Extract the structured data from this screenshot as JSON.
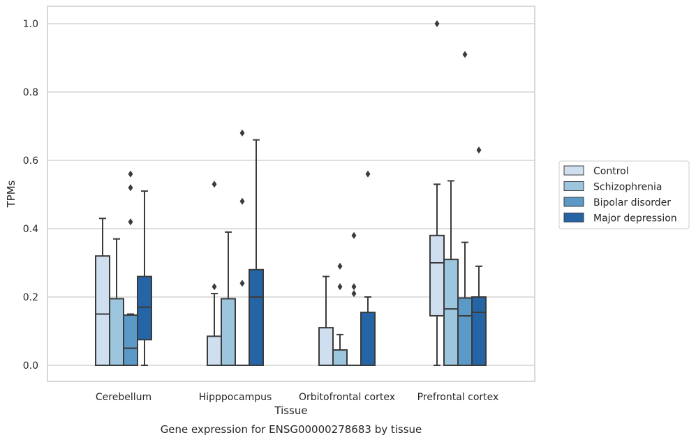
{
  "chart_data": {
    "type": "box",
    "title": "",
    "caption": "Gene expression for ENSG00000278683 by tissue",
    "xlabel": "Tissue",
    "ylabel": "TPMs",
    "ylim": [
      -0.05,
      1.05
    ],
    "yticks": [
      "0.0",
      "0.2",
      "0.4",
      "0.6",
      "0.8",
      "1.0"
    ],
    "grid": true,
    "legend_position": "right",
    "categories": [
      "Cerebellum",
      "Hipppocampus",
      "Orbitofrontal cortex",
      "Prefrontal cortex"
    ],
    "series": [
      {
        "name": "Control",
        "color": "#d0dff0",
        "boxes": [
          {
            "whislo": 0.0,
            "q1": 0.0,
            "med": 0.15,
            "q3": 0.32,
            "whishi": 0.43,
            "fliers": []
          },
          {
            "whislo": 0.0,
            "q1": 0.0,
            "med": 0.0,
            "q3": 0.085,
            "whishi": 0.21,
            "fliers": [
              0.23,
              0.53
            ]
          },
          {
            "whislo": 0.0,
            "q1": 0.0,
            "med": 0.0,
            "q3": 0.11,
            "whishi": 0.26,
            "fliers": []
          },
          {
            "whislo": 0.0,
            "q1": 0.145,
            "med": 0.3,
            "q3": 0.38,
            "whishi": 0.53,
            "fliers": [
              1.0
            ]
          }
        ]
      },
      {
        "name": "Schizophrenia",
        "color": "#9cc5de",
        "boxes": [
          {
            "whislo": 0.0,
            "q1": 0.0,
            "med": 0.0,
            "q3": 0.195,
            "whishi": 0.37,
            "fliers": []
          },
          {
            "whislo": 0.0,
            "q1": 0.0,
            "med": 0.0,
            "q3": 0.195,
            "whishi": 0.39,
            "fliers": []
          },
          {
            "whislo": 0.0,
            "q1": 0.0,
            "med": 0.0,
            "q3": 0.045,
            "whishi": 0.09,
            "fliers": [
              0.23,
              0.29
            ]
          },
          {
            "whislo": 0.0,
            "q1": 0.0,
            "med": 0.165,
            "q3": 0.31,
            "whishi": 0.54,
            "fliers": []
          }
        ]
      },
      {
        "name": "Bipolar disorder",
        "color": "#5b9ac7",
        "boxes": [
          {
            "whislo": 0.0,
            "q1": 0.0,
            "med": 0.05,
            "q3": 0.147,
            "whishi": 0.15,
            "fliers": [
              0.42,
              0.52,
              0.56
            ]
          },
          {
            "whislo": 0.0,
            "q1": 0.0,
            "med": 0.0,
            "q3": 0.0,
            "whishi": 0.0,
            "fliers": [
              0.24,
              0.48,
              0.68
            ]
          },
          {
            "whislo": 0.0,
            "q1": 0.0,
            "med": 0.0,
            "q3": 0.0,
            "whishi": 0.0,
            "fliers": [
              0.21,
              0.23,
              0.38
            ]
          },
          {
            "whislo": 0.0,
            "q1": 0.0,
            "med": 0.145,
            "q3": 0.197,
            "whishi": 0.36,
            "fliers": [
              0.91
            ]
          }
        ]
      },
      {
        "name": "Major depression",
        "color": "#2565a6",
        "boxes": [
          {
            "whislo": 0.0,
            "q1": 0.075,
            "med": 0.17,
            "q3": 0.26,
            "whishi": 0.51,
            "fliers": []
          },
          {
            "whislo": 0.0,
            "q1": 0.0,
            "med": 0.2,
            "q3": 0.28,
            "whishi": 0.66,
            "fliers": []
          },
          {
            "whislo": 0.0,
            "q1": 0.0,
            "med": 0.0,
            "q3": 0.155,
            "whishi": 0.2,
            "fliers": [
              0.56
            ]
          },
          {
            "whislo": 0.0,
            "q1": 0.0,
            "med": 0.155,
            "q3": 0.2,
            "whishi": 0.29,
            "fliers": [
              0.63
            ]
          }
        ]
      }
    ]
  },
  "colors": {
    "grid": "#cccccc",
    "frame": "#cccccc",
    "box_edge": "#3b3b3b",
    "legend_border": "#cccccc"
  }
}
